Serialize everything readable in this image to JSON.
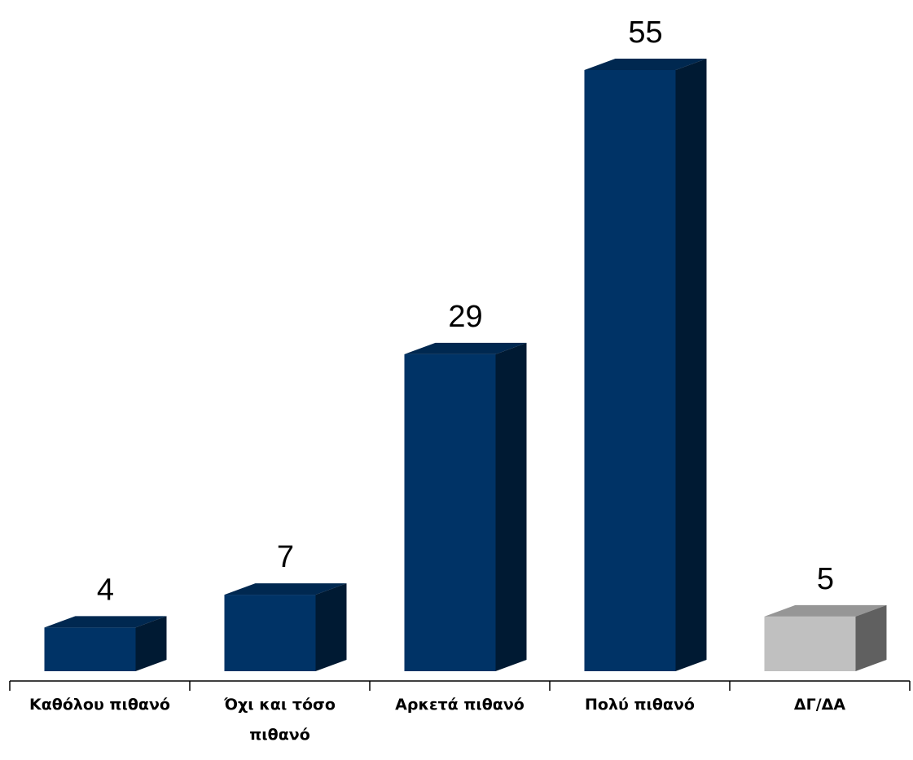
{
  "chart_data": {
    "type": "bar",
    "style": "3d",
    "categories": [
      [
        "Καθόλου πιθανό"
      ],
      [
        "Όχι και τόσο",
        "πιθανό"
      ],
      [
        "Αρκετά πιθανό"
      ],
      [
        "Πολύ πιθανό"
      ],
      [
        "ΔΓ/ΔΑ"
      ]
    ],
    "values": [
      4,
      7,
      29,
      55,
      5
    ],
    "value_labels": [
      "4",
      "7",
      "29",
      "55",
      "5"
    ],
    "bar_colors": [
      "#003366",
      "#003366",
      "#003366",
      "#003366",
      "#c0c0c0"
    ],
    "title": "",
    "xlabel": "",
    "ylabel": "",
    "ylim": [
      0,
      55
    ],
    "grid": false,
    "legend": "none"
  }
}
